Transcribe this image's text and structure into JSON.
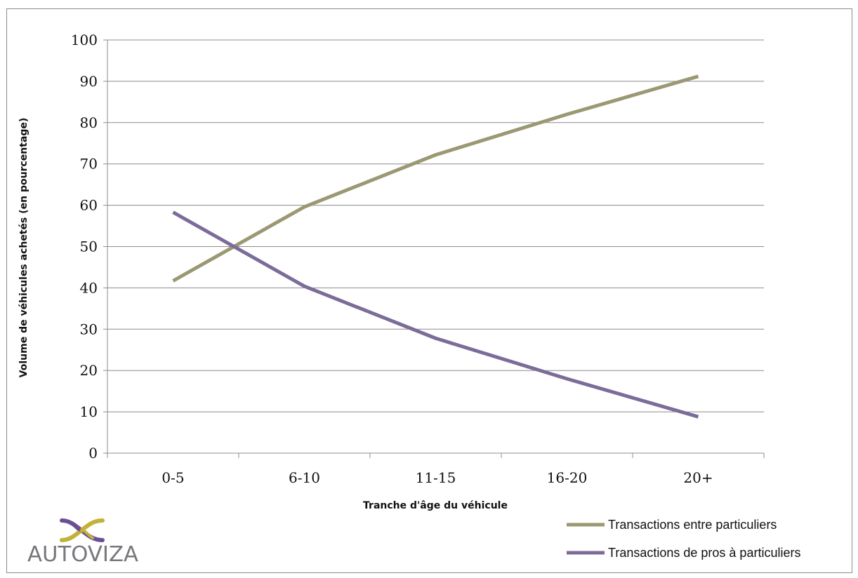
{
  "chart_data": {
    "type": "line",
    "categories": [
      "0-5",
      "6-10",
      "11-15",
      "16-20",
      "20+"
    ],
    "series": [
      {
        "name": "Transactions entre particuliers",
        "values": [
          41.7,
          59.6,
          72.2,
          82.0,
          91.2
        ],
        "color": "#9b9873"
      },
      {
        "name": "Transactions de pros à particuliers",
        "values": [
          58.3,
          40.4,
          27.8,
          18.0,
          8.8
        ],
        "color": "#7b6c99"
      }
    ],
    "xlabel": "Tranche d'âge du véhicule",
    "ylabel": "Volume de véhicules achetés (en pourcentage)",
    "ylim": [
      0,
      100
    ],
    "yticks": [
      "0",
      "10",
      "20",
      "30",
      "40",
      "50",
      "60",
      "70",
      "80",
      "90",
      "100"
    ],
    "grid": true,
    "legend_position": "bottom-right"
  },
  "logo": {
    "text": "AUTOVIZA",
    "colors": {
      "gold": "#c2b23a",
      "purple": "#6b4f95",
      "gray": "#77787b"
    }
  }
}
